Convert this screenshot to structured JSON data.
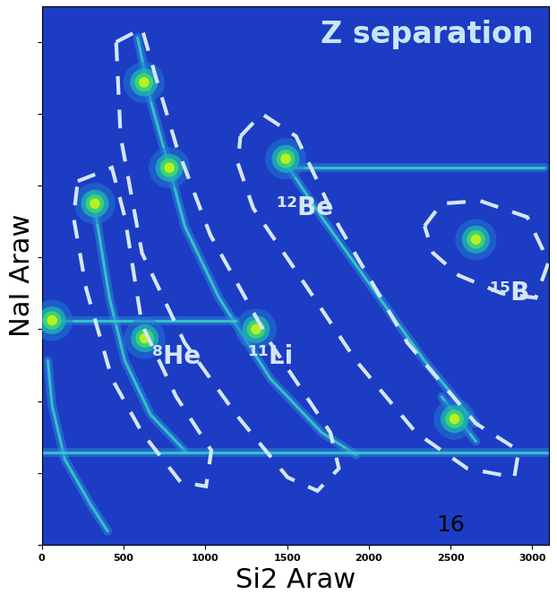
{
  "chart_data": {
    "type": "heatmap",
    "title": "Z separation",
    "x_label": "Si2 Araw",
    "y_label": "NaI Araw",
    "xlim": [
      0,
      3100
    ],
    "xticks": [
      0,
      500,
      1000,
      1500,
      2000,
      2500,
      3000
    ],
    "ylim": [
      0,
      3750
    ],
    "yticks": [
      0,
      500,
      1000,
      1500,
      2000,
      2500,
      3000,
      3500
    ],
    "tick_labels": "x",
    "clusters": [
      {
        "x": 63,
        "y": 1562
      },
      {
        "x": 325,
        "y": 2375
      },
      {
        "x": 625,
        "y": 3219
      },
      {
        "x": 780,
        "y": 2625
      },
      {
        "x": 630,
        "y": 1437
      },
      {
        "x": 1310,
        "y": 1500
      },
      {
        "x": 1492,
        "y": 2687
      },
      {
        "x": 2655,
        "y": 2125
      },
      {
        "x": 2524,
        "y": 875
      }
    ],
    "loci": [
      {
        "x": [
          37,
          63,
          141,
          298,
          403
        ],
        "y": [
          1281,
          969,
          594,
          281,
          94
        ]
      },
      {
        "x": [
          309,
          351,
          414,
          508,
          665,
          874
        ],
        "y": [
          2437,
          2156,
          1719,
          1281,
          906,
          656
        ]
      },
      {
        "x": [
          586,
          665,
          780,
          874,
          1084,
          1398,
          1712,
          1922
        ],
        "y": [
          3531,
          3094,
          2625,
          2219,
          1719,
          1156,
          781,
          625
        ]
      },
      {
        "x": [
          1492,
          1712,
          2026,
          2341,
          2655
        ],
        "y": [
          2656,
          2281,
          1781,
          1281,
          844
        ]
      },
      {
        "x": [
          1555,
          3073
        ],
        "y": [
          2625,
          2625
        ]
      },
      {
        "x": [
          0,
          3100
        ],
        "y": [
          644,
          644
        ]
      },
      {
        "x": [
          63,
          1189
        ],
        "y": [
          1562,
          1562
        ]
      },
      {
        "x": [
          2445,
          2655
        ],
        "y": [
          1031,
          719
        ]
      }
    ],
    "regions": [
      {
        "label": "⁸He",
        "label_x": 822,
        "label_y": 1312,
        "x": [
          220,
          429,
          508,
          613,
          822,
          1037,
          1005,
          848,
          613,
          429,
          272,
          194
        ],
        "y": [
          2531,
          2625,
          2281,
          1531,
          1031,
          656,
          406,
          437,
          781,
          1156,
          1781,
          2281
        ]
      },
      {
        "label": "¹¹Li",
        "label_x": 1398,
        "label_y": 1312,
        "x": [
          455,
          613,
          691,
          822,
          1031,
          1398,
          1765,
          1817,
          1686,
          1503,
          1189,
          874,
          613,
          482
        ],
        "y": [
          3500,
          3594,
          3281,
          2781,
          2156,
          1406,
          781,
          531,
          375,
          469,
          906,
          1406,
          2031,
          2844
        ]
      },
      {
        "label": "¹²Be",
        "label_x": 1607,
        "label_y": 2344,
        "x": [
          1215,
          1346,
          1555,
          1817,
          2236,
          2655,
          2917,
          2890,
          2602,
          2288,
          1922,
          1555,
          1293,
          1199
        ],
        "y": [
          2844,
          3000,
          2844,
          2219,
          1406,
          844,
          656,
          469,
          531,
          781,
          1281,
          1906,
          2344,
          2656
        ]
      },
      {
        "label": "¹⁵B",
        "label_x": 2860,
        "label_y": 1750,
        "x": [
          2341,
          2445,
          2681,
          2969,
          3100,
          3021,
          2812,
          2550,
          2393
        ],
        "y": [
          2219,
          2375,
          2394,
          2281,
          1969,
          1719,
          1750,
          1875,
          2031
        ]
      }
    ],
    "annotations": [
      {
        "text": "16",
        "x": 2500,
        "y": 60
      }
    ]
  }
}
